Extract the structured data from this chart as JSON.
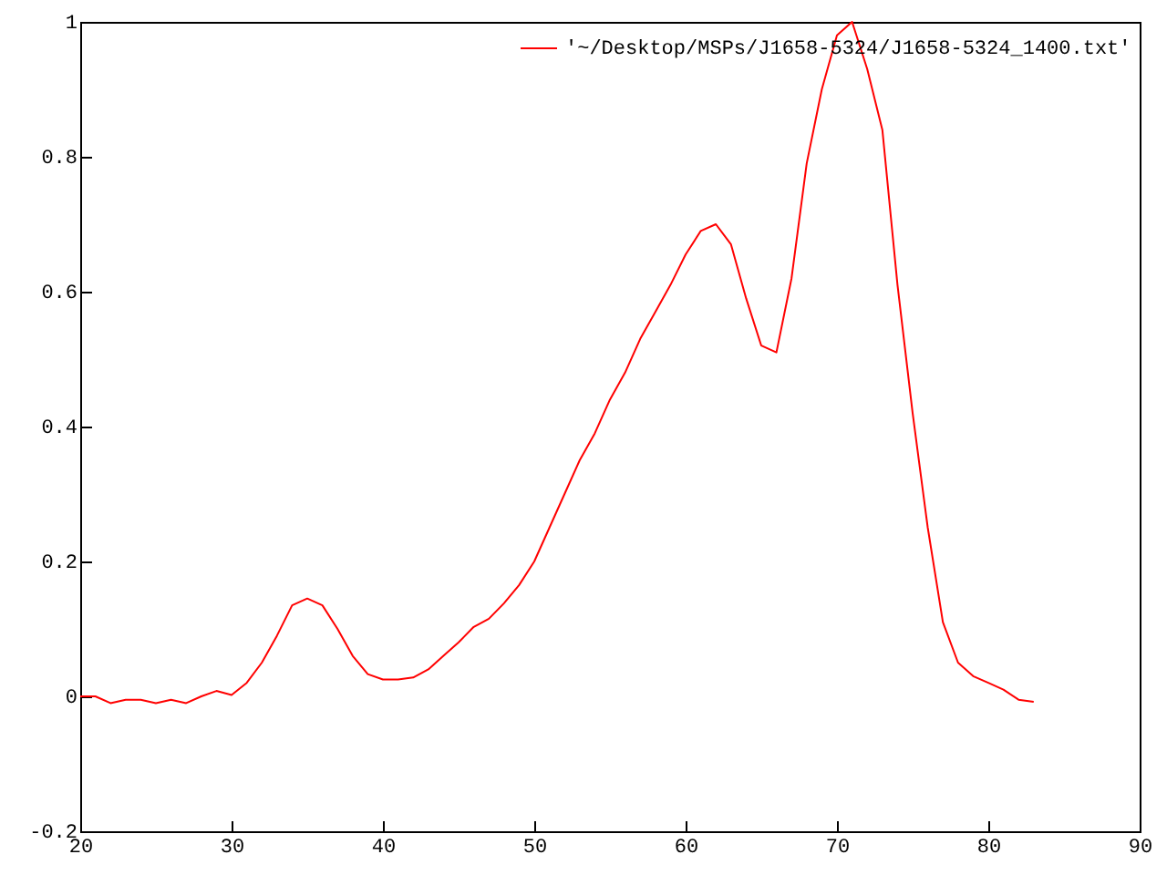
{
  "chart_data": {
    "type": "line",
    "x": [
      20,
      21,
      22,
      23,
      24,
      25,
      26,
      27,
      28,
      29,
      30,
      31,
      32,
      33,
      34,
      35,
      36,
      37,
      38,
      39,
      40,
      41,
      42,
      43,
      44,
      45,
      46,
      47,
      48,
      49,
      50,
      51,
      52,
      53,
      54,
      55,
      56,
      57,
      58,
      59,
      60,
      61,
      62,
      63,
      64,
      65,
      66,
      67,
      68,
      69,
      70,
      71,
      72,
      73,
      74,
      75,
      76,
      77,
      78,
      79,
      80,
      81,
      82,
      83
    ],
    "series": [
      {
        "name": "'~/Desktop/MSPs/J1658-5324/J1658-5324_1400.txt'",
        "color": "#ff0000",
        "values": [
          0.0,
          0.0,
          -0.01,
          -0.005,
          -0.005,
          -0.01,
          -0.005,
          -0.01,
          0.0,
          0.008,
          0.002,
          0.02,
          0.05,
          0.09,
          0.135,
          0.145,
          0.135,
          0.1,
          0.06,
          0.033,
          0.025,
          0.025,
          0.028,
          0.04,
          0.06,
          0.08,
          0.103,
          0.115,
          0.138,
          0.165,
          0.2,
          0.25,
          0.3,
          0.35,
          0.39,
          0.44,
          0.48,
          0.53,
          0.57,
          0.61,
          0.655,
          0.69,
          0.7,
          0.67,
          0.59,
          0.52,
          0.51,
          0.62,
          0.79,
          0.9,
          0.98,
          1.0,
          0.93,
          0.84,
          0.61,
          0.42,
          0.25,
          0.11,
          0.05,
          0.03,
          0.02,
          0.01,
          -0.005,
          -0.008
        ]
      }
    ],
    "xlim": [
      20,
      90
    ],
    "xticks": [
      20,
      30,
      40,
      50,
      60,
      70,
      80,
      90
    ],
    "ylim": [
      -0.2,
      1
    ],
    "yticks": [
      -0.2,
      0,
      0.2,
      0.4,
      0.6,
      0.8,
      1
    ],
    "legend": "top right",
    "grid": false,
    "marker": "none",
    "line_style": "solid"
  }
}
